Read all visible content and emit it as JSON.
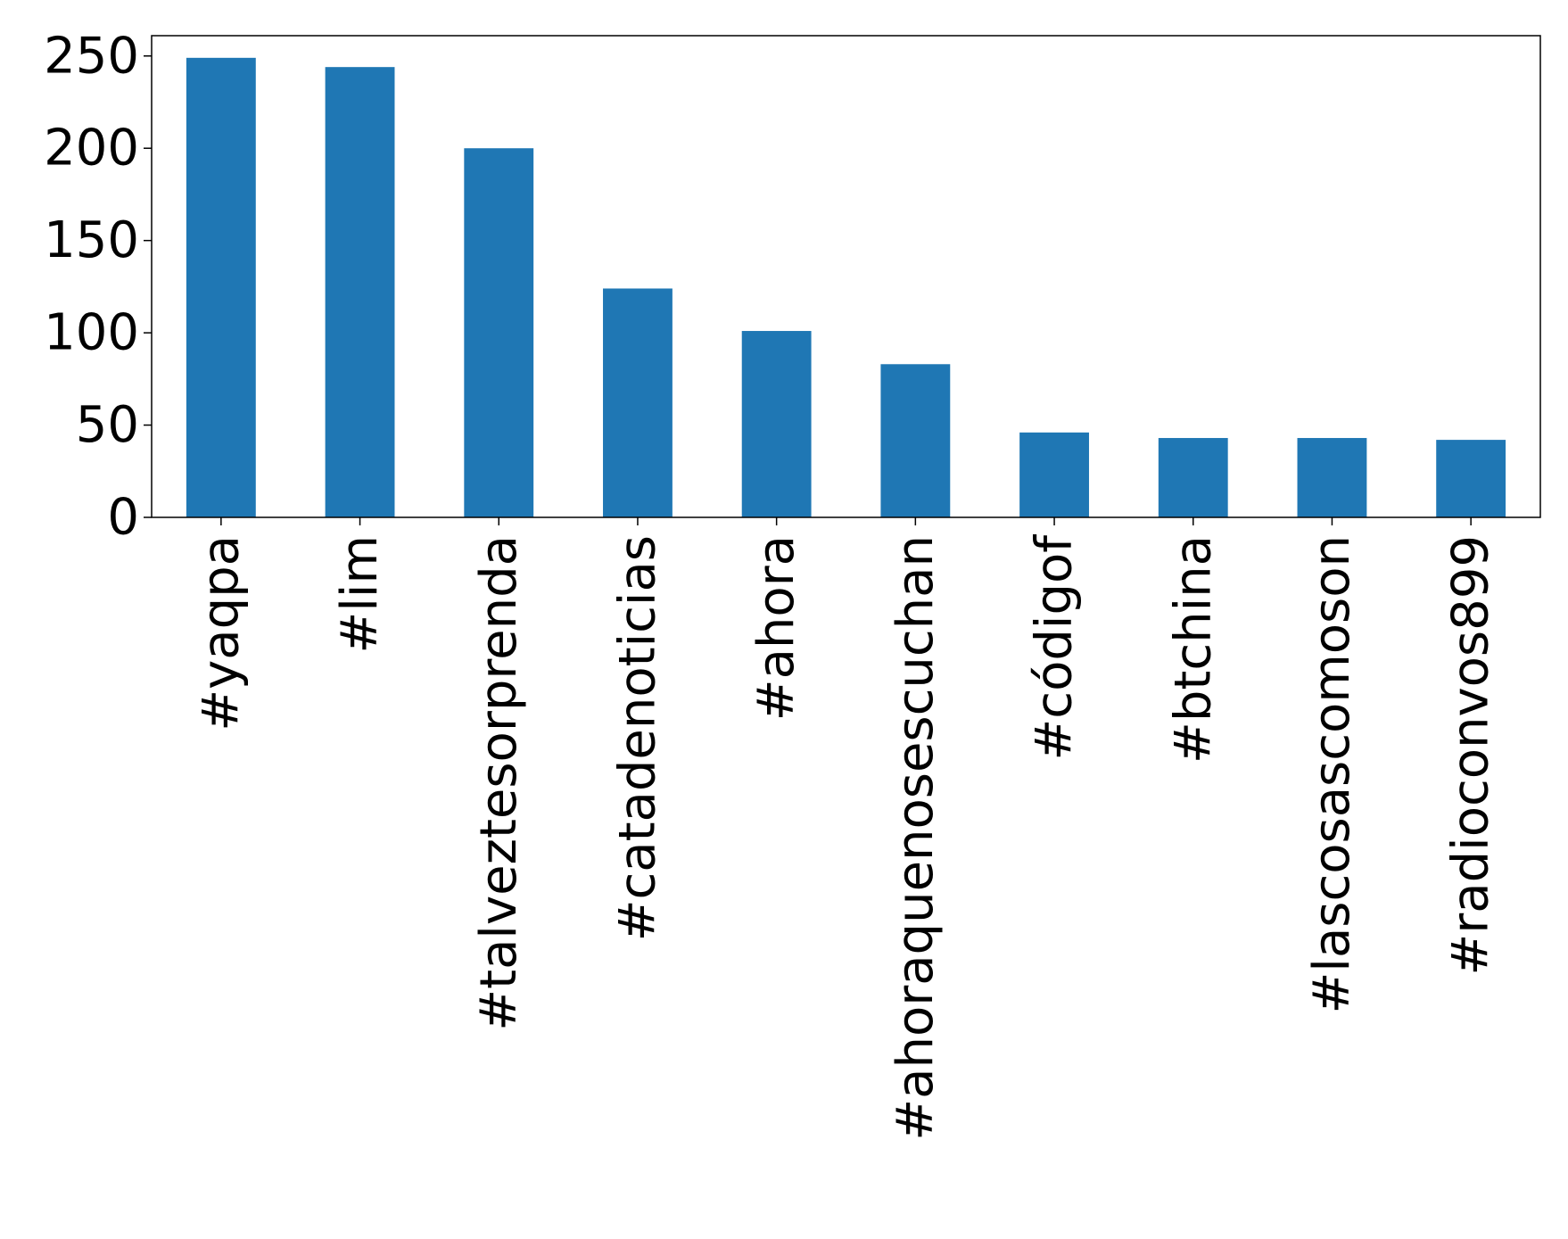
{
  "chart_data": {
    "type": "bar",
    "title": "",
    "xlabel": "",
    "ylabel": "",
    "categories": [
      "#yaqpa",
      "#lim",
      "#talveztesorprenda",
      "#catadenoticias",
      "#ahora",
      "#ahoraquenosescuchan",
      "#códigof",
      "#btchina",
      "#lascosascomoson",
      "#radioconvos899"
    ],
    "values": [
      249,
      244,
      200,
      124,
      101,
      83,
      46,
      43,
      43,
      42
    ],
    "ylim": [
      0,
      261
    ],
    "yticks": [
      0,
      50,
      100,
      150,
      200,
      250
    ],
    "grid": false,
    "legend": "none",
    "colors": {
      "bar": "#1f77b4",
      "axis": "#000000",
      "background": "#ffffff"
    }
  }
}
